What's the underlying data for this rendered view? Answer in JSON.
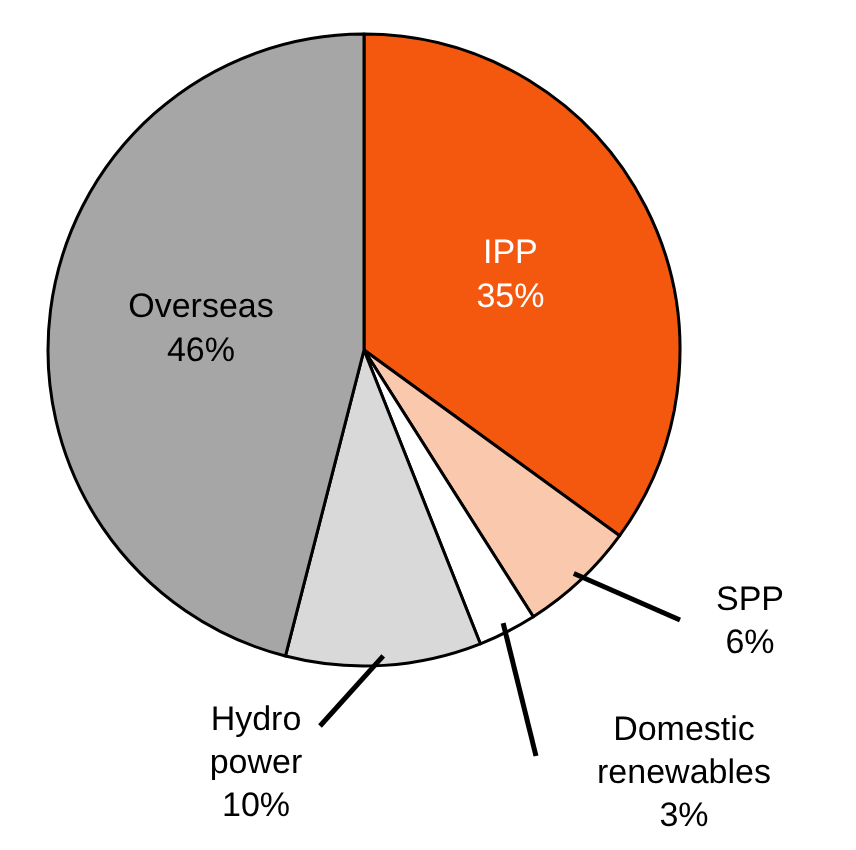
{
  "chart_data": {
    "type": "pie",
    "categories": [
      "IPP",
      "SPP",
      "Domestic renewables",
      "Hydro power",
      "Overseas"
    ],
    "values": [
      35,
      6,
      3,
      10,
      46
    ],
    "colors": [
      "#f4580f",
      "#f9c8ad",
      "#ffffff",
      "#d9d9d9",
      "#a6a6a6"
    ],
    "value_labels": [
      "35%",
      "6%",
      "3%",
      "10%",
      "46%"
    ],
    "legend": false
  }
}
